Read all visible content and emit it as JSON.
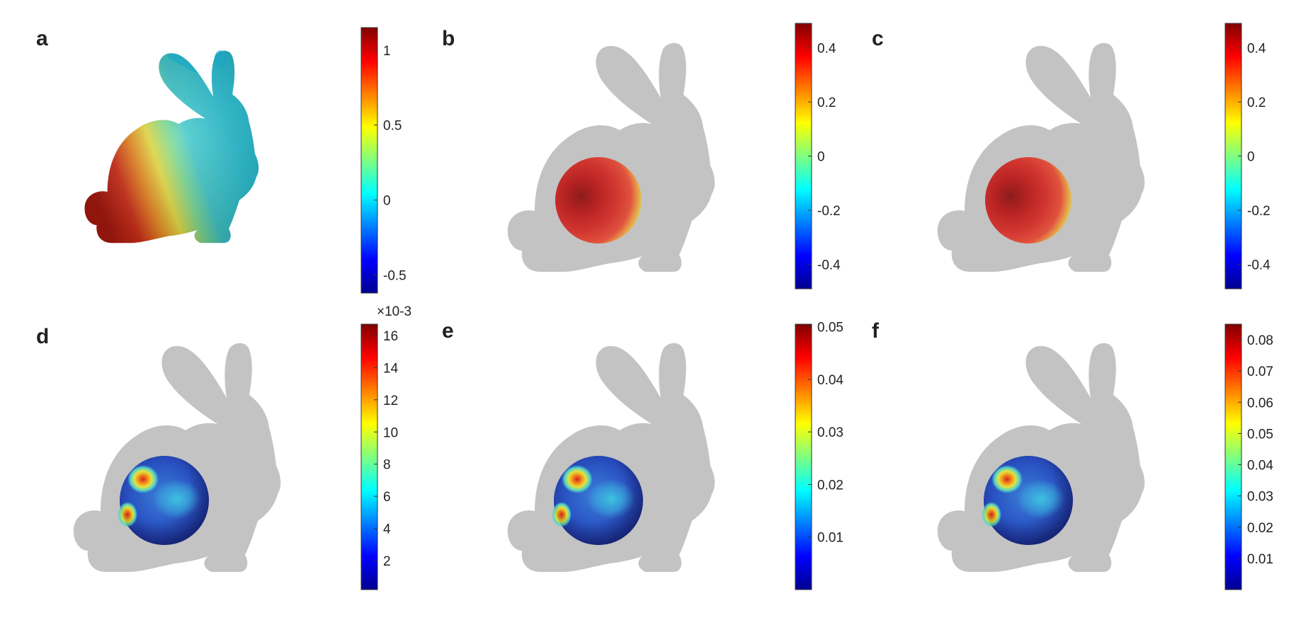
{
  "figure": {
    "panels": [
      {
        "id": "a",
        "label": "a",
        "content": "bunny-surface",
        "colorbar": {
          "multiplier": "",
          "range": [
            -0.62,
            1.15
          ],
          "ticks": [
            {
              "value": 1,
              "label": "1"
            },
            {
              "value": 0.5,
              "label": "0.5"
            },
            {
              "value": 0,
              "label": "0"
            },
            {
              "value": -0.5,
              "label": "-0.5"
            }
          ]
        }
      },
      {
        "id": "b",
        "label": "b",
        "content": "bunny-silhouette-smooth-sphere",
        "colorbar": {
          "multiplier": "",
          "range": [
            -0.49,
            0.49
          ],
          "ticks": [
            {
              "value": 0.4,
              "label": "0.4"
            },
            {
              "value": 0.2,
              "label": "0.2"
            },
            {
              "value": 0,
              "label": "0"
            },
            {
              "value": -0.2,
              "label": "-0.2"
            },
            {
              "value": -0.4,
              "label": "-0.4"
            }
          ]
        }
      },
      {
        "id": "c",
        "label": "c",
        "content": "bunny-silhouette-smooth-sphere",
        "colorbar": {
          "multiplier": "",
          "range": [
            -0.49,
            0.49
          ],
          "ticks": [
            {
              "value": 0.4,
              "label": "0.4"
            },
            {
              "value": 0.2,
              "label": "0.2"
            },
            {
              "value": 0,
              "label": "0"
            },
            {
              "value": -0.2,
              "label": "-0.2"
            },
            {
              "value": -0.4,
              "label": "-0.4"
            }
          ]
        }
      },
      {
        "id": "d",
        "label": "d",
        "content": "bunny-silhouette-error-sphere",
        "colorbar": {
          "multiplier": "×10-3",
          "range": [
            0.2,
            16.7
          ],
          "ticks": [
            {
              "value": 16,
              "label": "16"
            },
            {
              "value": 14,
              "label": "14"
            },
            {
              "value": 12,
              "label": "12"
            },
            {
              "value": 10,
              "label": "10"
            },
            {
              "value": 8,
              "label": "8"
            },
            {
              "value": 6,
              "label": "6"
            },
            {
              "value": 4,
              "label": "4"
            },
            {
              "value": 2,
              "label": "2"
            }
          ]
        }
      },
      {
        "id": "e",
        "label": "e",
        "content": "bunny-silhouette-error-sphere",
        "colorbar": {
          "multiplier": "",
          "range": [
            0.0,
            0.0505
          ],
          "ticks": [
            {
              "value": 0.05,
              "label": "0.05"
            },
            {
              "value": 0.04,
              "label": "0.04"
            },
            {
              "value": 0.03,
              "label": "0.03"
            },
            {
              "value": 0.02,
              "label": "0.02"
            },
            {
              "value": 0.01,
              "label": "0.01"
            }
          ]
        }
      },
      {
        "id": "f",
        "label": "f",
        "content": "bunny-silhouette-error-sphere",
        "colorbar": {
          "multiplier": "",
          "range": [
            0.0,
            0.085
          ],
          "ticks": [
            {
              "value": 0.08,
              "label": "0.08"
            },
            {
              "value": 0.07,
              "label": "0.07"
            },
            {
              "value": 0.06,
              "label": "0.06"
            },
            {
              "value": 0.05,
              "label": "0.05"
            },
            {
              "value": 0.04,
              "label": "0.04"
            },
            {
              "value": 0.03,
              "label": "0.03"
            },
            {
              "value": 0.02,
              "label": "0.02"
            },
            {
              "value": 0.01,
              "label": "0.01"
            }
          ]
        }
      }
    ],
    "colors": {
      "silhouette": "#c3c3c3",
      "silhouette_shadow": "#b2b2b2",
      "label": "#222222"
    }
  }
}
